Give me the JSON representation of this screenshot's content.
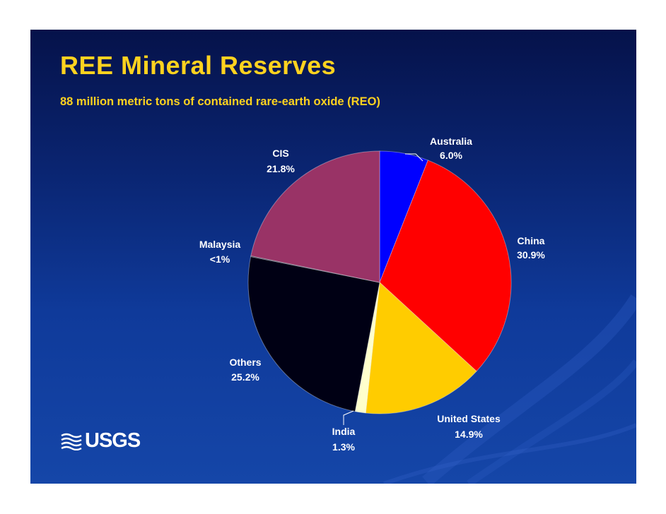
{
  "slide": {
    "title": "REE Mineral Reserves",
    "subtitle": "88 million metric tons of contained rare-earth oxide (REO)",
    "logo_text": "USGS",
    "background_color": "#0a2470",
    "title_color": "#ffd21f"
  },
  "chart_data": {
    "type": "pie",
    "title": "",
    "start_angle_deg": 0,
    "direction": "clockwise",
    "slices": [
      {
        "name": "Australia",
        "value": 6.0,
        "label": "6.0%",
        "color": "#0000ff"
      },
      {
        "name": "China",
        "value": 30.9,
        "label": "30.9%",
        "color": "#ff0000"
      },
      {
        "name": "United States",
        "value": 14.9,
        "label": "14.9%",
        "color": "#ffcc00"
      },
      {
        "name": "India",
        "value": 1.3,
        "label": "1.3%",
        "color": "#ffffcc"
      },
      {
        "name": "Others",
        "value": 25.2,
        "label": "25.2%",
        "color": "#000014"
      },
      {
        "name": "Malaysia",
        "value": 0.1,
        "label": "<1%",
        "color": "#000014"
      },
      {
        "name": "CIS",
        "value": 21.8,
        "label": "21.8%",
        "color": "#993366"
      }
    ]
  }
}
